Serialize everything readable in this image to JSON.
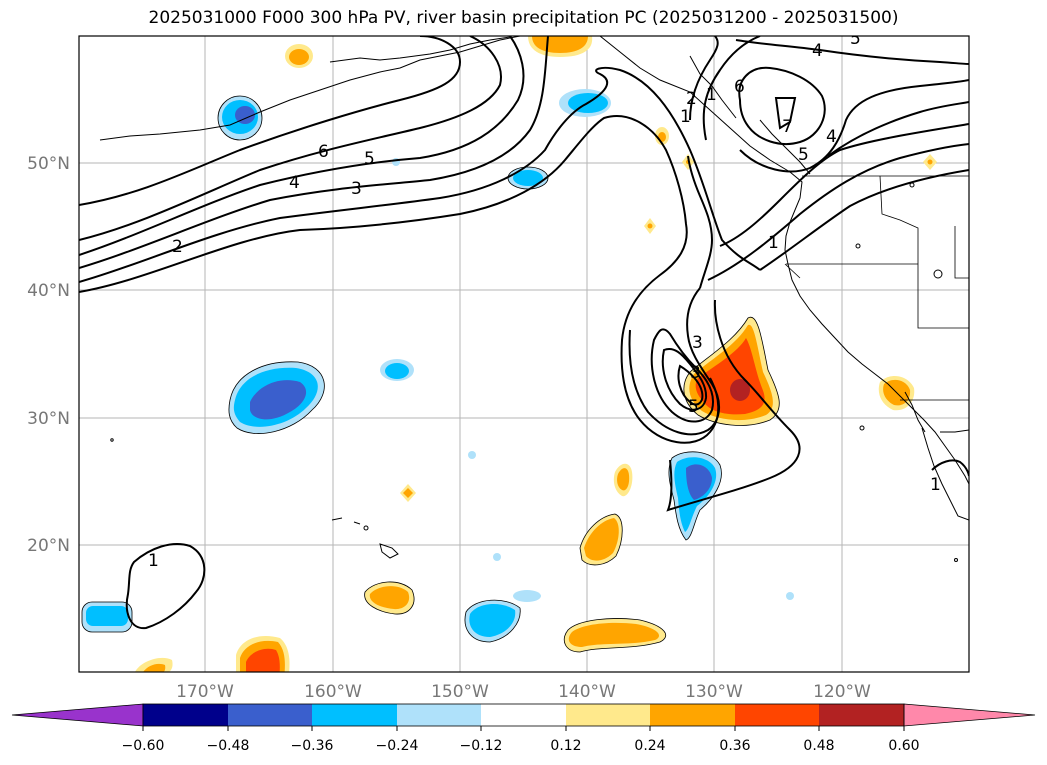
{
  "title": "2025031000 F000 300 hPa PV, river basin precipitation PC (2025031200 - 2025031500)",
  "lat_labels": [
    "50°N",
    "40°N",
    "30°N",
    "20°N"
  ],
  "lon_labels": [
    "170°W",
    "160°W",
    "150°W",
    "140°W",
    "130°W",
    "120°W"
  ],
  "contour_labels": [
    "1",
    "2",
    "3",
    "4",
    "5",
    "6",
    "1",
    "1",
    "3",
    "5",
    "1",
    "4",
    "5",
    "6",
    "7",
    "4",
    "5",
    "2",
    "1",
    "3"
  ],
  "colorbar": {
    "colors": [
      "#9933cc",
      "#00008b",
      "#3a5fcd",
      "#00bfff",
      "#afe1fa",
      "#ffffff",
      "#ffe98c",
      "#ffa500",
      "#ff4500",
      "#b22222",
      "#ff88aa"
    ],
    "tick_labels": [
      "−0.60",
      "−0.48",
      "−0.36",
      "−0.24",
      "−0.12",
      "0.12",
      "0.24",
      "0.36",
      "0.48",
      "0.60"
    ]
  }
}
